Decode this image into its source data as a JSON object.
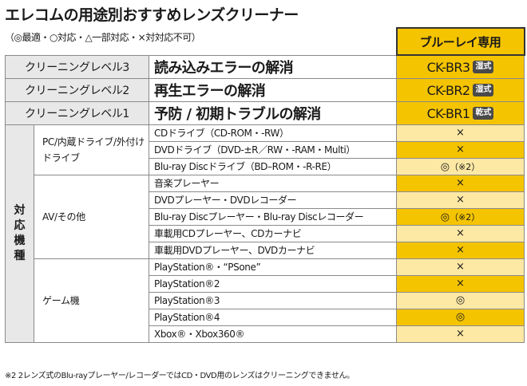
{
  "title": "エレコムの用途別おすすめレンズクリーナー",
  "legend_note": "（◎最適・○対応・△一部対応・×対対応不可）",
  "product_header": "ブルーレイ専用",
  "levels": [
    {
      "label": "クリーニングレベル3",
      "description": "読み込みエラーの解消",
      "product": "CK-BR3",
      "type": "湿式"
    },
    {
      "label": "クリーニングレベル2",
      "description": "再生エラーの解消",
      "product": "CK-BR2",
      "type": "湿式"
    },
    {
      "label": "クリーニングレベル1",
      "description": "予防 / 初期トラブルの解消",
      "product": "CK-BR1",
      "type": "乾式"
    }
  ],
  "category_main": "対応機種",
  "groups": [
    {
      "name": "PC/内蔵ドライブ/外付けドライブ",
      "devices": [
        {
          "name": "CDドライブ（CD-ROM・-RW）",
          "mark": "×",
          "note": ""
        },
        {
          "name": "DVDドライブ（DVD-±R／RW・-RAM・Multi）",
          "mark": "×",
          "note": ""
        },
        {
          "name": "Blu-ray Discドライブ（BD–ROM・-R-RE）",
          "mark": "◎",
          "note": "（※2）"
        }
      ]
    },
    {
      "name": "AV/その他",
      "devices": [
        {
          "name": "音楽プレーヤー",
          "mark": "×",
          "note": ""
        },
        {
          "name": "DVDプレーヤー・DVDレコーダー",
          "mark": "×",
          "note": ""
        },
        {
          "name": "Blu-ray Discプレーヤー・Blu-ray Discレコーダー",
          "mark": "◎",
          "note": "（※2）"
        },
        {
          "name": "車載用CDプレーヤー、CDカーナビ",
          "mark": "×",
          "note": ""
        },
        {
          "name": "車載用DVDプレーヤー、DVDカーナビ",
          "mark": "×",
          "note": ""
        }
      ]
    },
    {
      "name": "ゲーム機",
      "devices": [
        {
          "name": "PlayStation®・“PSone”",
          "mark": "×",
          "note": ""
        },
        {
          "name": "PlayStation®2",
          "mark": "×",
          "note": ""
        },
        {
          "name": "PlayStation®3",
          "mark": "◎",
          "note": ""
        },
        {
          "name": "PlayStation®4",
          "mark": "◎",
          "note": ""
        },
        {
          "name": "Xbox®・Xbox360®",
          "mark": "×",
          "note": ""
        }
      ]
    }
  ],
  "footnote": "※2 2レンズ式のBlu-rayプレーヤー/レコーダーではCD・DVD用のレンズはクリーニングできません。",
  "colors": {
    "accent_yellow": "#f5c400",
    "light_yellow": "#fde8a4",
    "label_gray": "#e8e8e8",
    "badge_dark": "#4a4a4a"
  }
}
